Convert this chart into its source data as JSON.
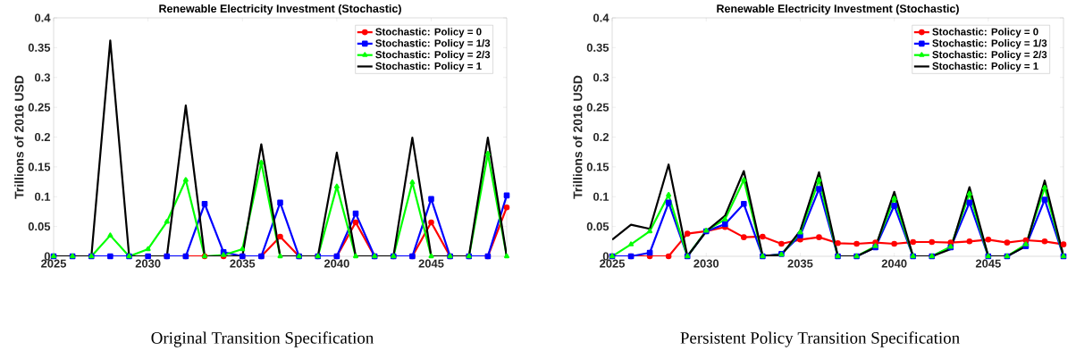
{
  "chart_data": [
    {
      "type": "line",
      "title": "Renewable Electricity Investment (Stochastic)",
      "ylabel": "Trillions of 2016 USD",
      "annotations": [
        "Original Transition Specification"
      ],
      "x": [
        2025,
        2026,
        2027,
        2028,
        2029,
        2030,
        2031,
        2032,
        2033,
        2034,
        2035,
        2036,
        2037,
        2038,
        2039,
        2040,
        2041,
        2042,
        2043,
        2044,
        2045,
        2046,
        2047,
        2048,
        2049
      ],
      "xlim": [
        2025,
        2049
      ],
      "xticks": [
        2025,
        2030,
        2035,
        2040,
        2045
      ],
      "ylim": [
        0,
        0.4
      ],
      "yticks": [
        0,
        0.05,
        0.1,
        0.15,
        0.2,
        0.25,
        0.3,
        0.35,
        0.4
      ],
      "legend": "top right",
      "grid": false,
      "line_style": "solid",
      "series": [
        {
          "name": "Stochastic: Policy = 0",
          "color": "#ff0000",
          "marker": "circle",
          "values": [
            null,
            null,
            null,
            null,
            null,
            null,
            0,
            0,
            0,
            0,
            0,
            0,
            0.033,
            0,
            0,
            0,
            0.057,
            0,
            0,
            0,
            0.057,
            0,
            0,
            0,
            0.082
          ]
        },
        {
          "name": "Stochastic: Policy = 1/3",
          "color": "#0000ff",
          "marker": "square",
          "values": [
            0,
            0,
            0,
            0,
            0,
            0,
            0,
            0,
            0.088,
            0.007,
            0,
            0,
            0.09,
            0,
            0,
            0,
            0.072,
            0,
            0,
            0,
            0.096,
            0,
            0,
            0,
            0.102
          ]
        },
        {
          "name": "Stochastic: Policy = 2/3",
          "color": "#00ff00",
          "marker": "triangle",
          "values": [
            0,
            0,
            0,
            0.035,
            0,
            0.012,
            0.058,
            0.128,
            0,
            0.002,
            0.012,
            0.157,
            0,
            0,
            0,
            0.117,
            0,
            0,
            0,
            0.124,
            0,
            0,
            0,
            0.172,
            0
          ]
        },
        {
          "name": "Stochastic: Policy = 1",
          "color": "#000000",
          "marker": "none",
          "values": [
            0,
            0,
            0,
            0.362,
            0,
            0,
            0,
            0.253,
            0,
            0,
            0,
            0.188,
            0,
            0,
            0,
            0.174,
            0,
            0,
            0,
            0.199,
            0,
            0,
            0,
            0.199,
            0
          ]
        }
      ]
    },
    {
      "type": "line",
      "title": "Renewable Electricity Investment (Stochastic)",
      "ylabel": "Trillions of 2016 USD",
      "annotations": [
        "Persistent Policy Transition Specification"
      ],
      "x": [
        2025,
        2026,
        2027,
        2028,
        2029,
        2030,
        2031,
        2032,
        2033,
        2034,
        2035,
        2036,
        2037,
        2038,
        2039,
        2040,
        2041,
        2042,
        2043,
        2044,
        2045,
        2046,
        2047,
        2048,
        2049
      ],
      "xlim": [
        2025,
        2049
      ],
      "xticks": [
        2025,
        2030,
        2035,
        2040,
        2045
      ],
      "ylim": [
        0,
        0.4
      ],
      "yticks": [
        0,
        0.05,
        0.1,
        0.15,
        0.2,
        0.25,
        0.3,
        0.35,
        0.4
      ],
      "legend": "top right",
      "grid": false,
      "line_style": "solid",
      "series": [
        {
          "name": "Stochastic: Policy = 0",
          "color": "#ff0000",
          "marker": "circle",
          "values": [
            0,
            0,
            0,
            0,
            0.038,
            0.042,
            0.049,
            0.032,
            0.033,
            0.021,
            0.028,
            0.032,
            0.022,
            0.021,
            0.023,
            0.021,
            0.024,
            0.024,
            0.023,
            0.025,
            0.028,
            0.023,
            0.027,
            0.025,
            0.02
          ]
        },
        {
          "name": "Stochastic: Policy = 1/3",
          "color": "#0000ff",
          "marker": "square",
          "values": [
            0,
            0,
            0.006,
            0.09,
            0,
            0.042,
            0.054,
            0.088,
            0,
            0.004,
            0.035,
            0.113,
            0,
            0,
            0.015,
            0.085,
            0,
            0,
            0.015,
            0.09,
            0,
            0,
            0.017,
            0.095,
            0
          ]
        },
        {
          "name": "Stochastic: Policy = 2/3",
          "color": "#00ff00",
          "marker": "triangle",
          "values": [
            0,
            0.02,
            0.042,
            0.103,
            0,
            0.043,
            0.062,
            0.128,
            0,
            0.003,
            0.04,
            0.128,
            0,
            0,
            0.017,
            0.097,
            0,
            0,
            0.016,
            0.105,
            0,
            0,
            0.02,
            0.115,
            0
          ]
        },
        {
          "name": "Stochastic: Policy = 1",
          "color": "#000000",
          "marker": "none",
          "values": [
            0.028,
            0.053,
            0.046,
            0.154,
            0,
            0.042,
            0.068,
            0.143,
            0.001,
            0.002,
            0.043,
            0.141,
            0,
            0,
            0.015,
            0.108,
            0,
            0,
            0.012,
            0.116,
            0,
            0,
            0.017,
            0.127,
            0
          ]
        }
      ]
    }
  ]
}
